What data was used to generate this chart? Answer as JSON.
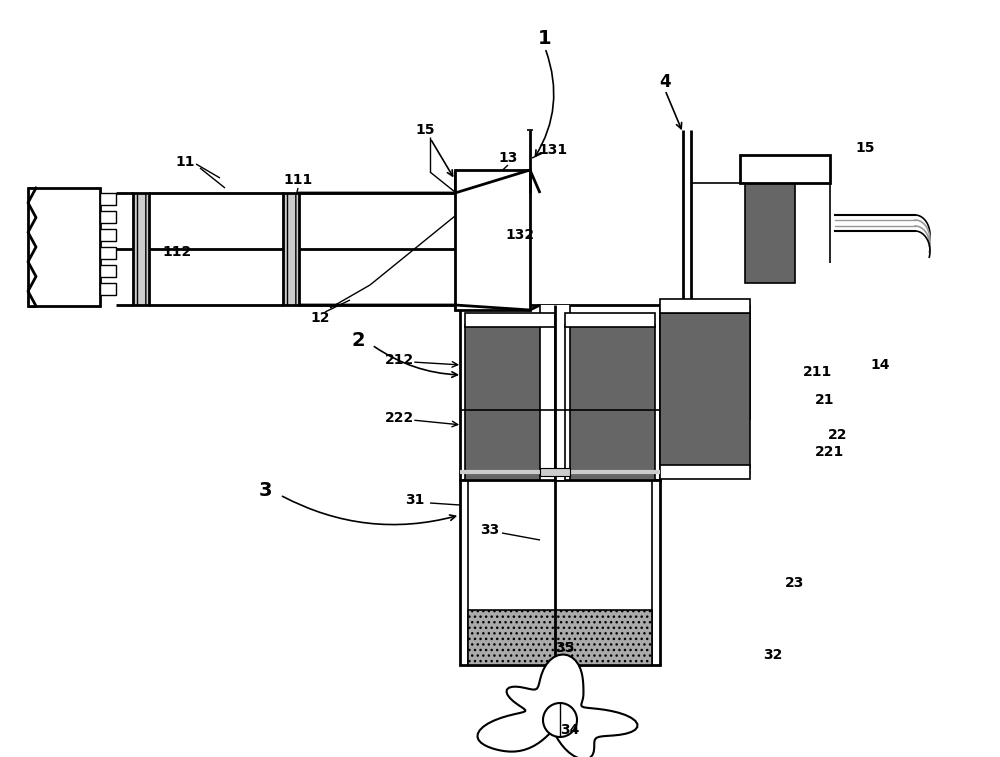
{
  "bg_color": "#ffffff",
  "line_color": "#000000",
  "dark_gray": "#666666",
  "mid_gray": "#999999",
  "light_gray": "#cccccc",
  "orange_label": "#cc6600"
}
